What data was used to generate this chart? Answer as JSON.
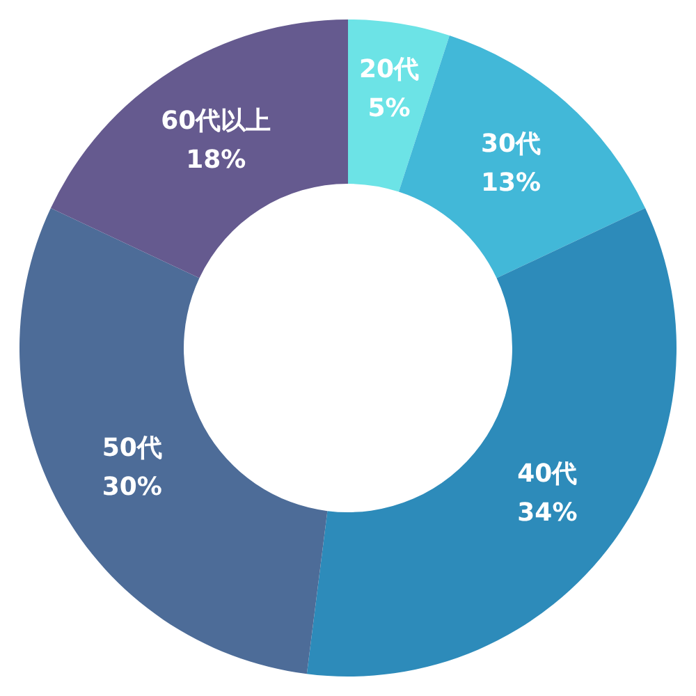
{
  "chart_data": {
    "type": "donut",
    "categories": [
      "20代",
      "30代",
      "40代",
      "50代",
      "60代以上"
    ],
    "values": [
      5,
      13,
      34,
      30,
      18
    ],
    "value_labels": [
      "5%",
      "13%",
      "34%",
      "30%",
      "18%"
    ],
    "colors": [
      "#6ce3e6",
      "#42b8d8",
      "#2d8bba",
      "#4d6c98",
      "#655a8f"
    ]
  }
}
